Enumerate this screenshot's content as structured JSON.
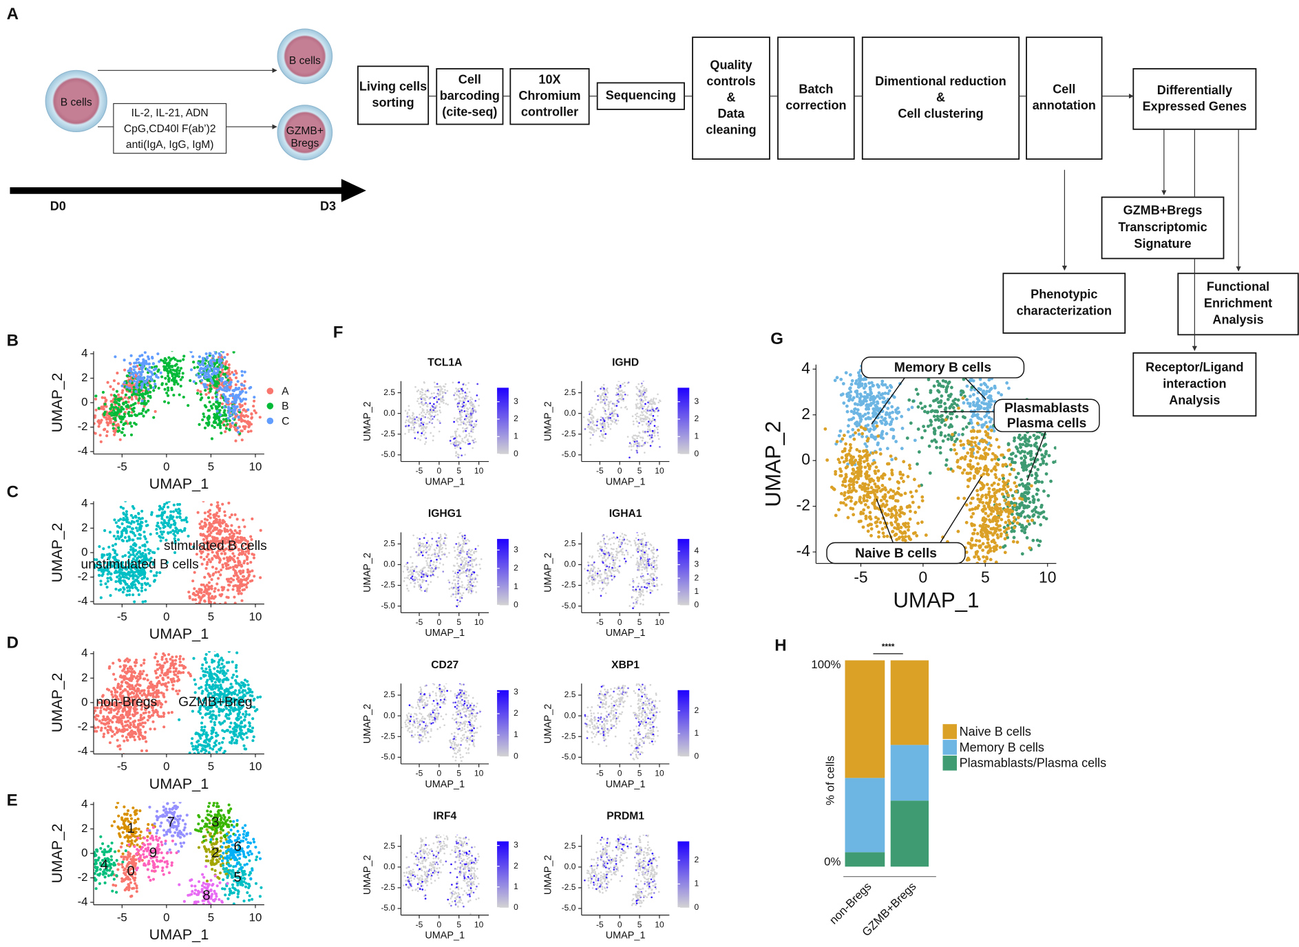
{
  "panel_labels": [
    "A",
    "B",
    "C",
    "D",
    "E",
    "F",
    "G",
    "H"
  ],
  "workflow": {
    "input_cell": "B cells",
    "control_cell": "B cells",
    "treated_cell": [
      "GZMB+",
      "Bregs"
    ],
    "stimulation": [
      "IL-2, IL-21, ADN",
      "CpG,CD40l F(ab’)2",
      "anti(IgA, IgG, IgM)"
    ],
    "timeline": [
      "D0",
      "D3"
    ],
    "steps": [
      [
        "Living cells",
        "sorting"
      ],
      [
        "Cell",
        "barcoding",
        "(cite-seq)"
      ],
      [
        "10X",
        "Chromium",
        "controller"
      ],
      [
        "Sequencing"
      ],
      [
        "Quality",
        "controls",
        "&",
        "Data",
        "cleaning"
      ],
      [
        "Batch",
        "correction"
      ],
      [
        "Dimentional reduction",
        "&",
        "Cell clustering"
      ],
      [
        "Cell",
        "annotation"
      ],
      [
        "Differentially",
        "Expressed Genes"
      ]
    ],
    "outputs": [
      [
        "GZMB+Bregs",
        "Transcriptomic",
        "Signature"
      ],
      [
        "Phenotypic",
        "characterization"
      ],
      [
        "Functional",
        "Enrichment",
        "Analysis"
      ],
      [
        "Receptor/Ligand",
        "interaction",
        "Analysis"
      ]
    ]
  },
  "chart_data": [
    {
      "type": "umap",
      "xlabel": "UMAP_1",
      "ylabel": "UMAP_2",
      "xlim": [
        -8.2,
        11
      ],
      "ylim": [
        -4.2,
        4.2
      ],
      "xticks": [
        -5,
        0,
        5,
        10
      ],
      "yticks": [
        -4,
        -2,
        0,
        2,
        4
      ],
      "legend": true,
      "series": [
        {
          "name": "A",
          "color": "#F8766D",
          "x": [
            -4,
            6,
            8,
            -6.5
          ],
          "y": [
            1,
            2,
            -1,
            -1
          ]
        },
        {
          "name": "B",
          "color": "#00BA38",
          "x": [
            -5,
            -3,
            6,
            0.5,
            5
          ],
          "y": [
            -1,
            1,
            -1,
            2.5,
            2.5
          ]
        },
        {
          "name": "C",
          "color": "#619CFF",
          "x": [
            -3,
            5,
            7.5
          ],
          "y": [
            2.5,
            3,
            0.5
          ]
        }
      ]
    },
    {
      "type": "umap",
      "xlabel": "UMAP_1",
      "ylabel": "UMAP_2",
      "xlim": [
        -8.2,
        11
      ],
      "ylim": [
        -4.2,
        4.2
      ],
      "xticks": [
        -5,
        0,
        5,
        10
      ],
      "yticks": [
        -4,
        -2,
        0,
        2,
        4
      ],
      "legend": false,
      "series": [
        {
          "name": "stimulated B cells",
          "color": "#F8766D",
          "x": [
            5.5,
            5.5,
            8,
            8,
            4.5
          ],
          "y": [
            0.5,
            2.5,
            -2,
            0.5,
            -3.5
          ]
        },
        {
          "name": "unstimulated B cells",
          "color": "#00BFC4",
          "x": [
            -3,
            -4,
            -6.5,
            -4,
            0.5
          ],
          "y": [
            -1,
            2,
            -1,
            -2,
            2.5
          ]
        }
      ]
    },
    {
      "type": "umap",
      "xlabel": "UMAP_1",
      "ylabel": "UMAP_2",
      "xlim": [
        -8.2,
        11
      ],
      "ylim": [
        -4.2,
        4.2
      ],
      "xticks": [
        -5,
        0,
        5,
        10
      ],
      "yticks": [
        -4,
        -2,
        0,
        2,
        4
      ],
      "legend": false,
      "series": [
        {
          "name": "non-Bregs",
          "color": "#F8766D",
          "x": [
            -4.5,
            -4,
            -6.5,
            -1.5,
            0.5,
            -4
          ],
          "y": [
            0,
            2,
            -1,
            0,
            2.5,
            -2
          ]
        },
        {
          "name": "GZMB+Breg",
          "color": "#00BFC4",
          "x": [
            5.5,
            5.5,
            8,
            8,
            4.5
          ],
          "y": [
            0,
            2.5,
            -2,
            0.5,
            -3.5
          ]
        }
      ]
    },
    {
      "type": "umap",
      "xlabel": "UMAP_1",
      "ylabel": "UMAP_2",
      "xlim": [
        -8.2,
        11
      ],
      "ylim": [
        -4.2,
        4.2
      ],
      "xticks": [
        -5,
        0,
        5,
        10
      ],
      "yticks": [
        -4,
        -2,
        0,
        2,
        4
      ],
      "legend": false,
      "series": [
        {
          "name": "0",
          "color": "#F8766D",
          "x": [
            -4
          ],
          "y": [
            -1.5
          ]
        },
        {
          "name": "1",
          "color": "#D89000",
          "x": [
            -4
          ],
          "y": [
            2
          ]
        },
        {
          "name": "2",
          "color": "#A3A500",
          "x": [
            5.5
          ],
          "y": [
            0
          ]
        },
        {
          "name": "3",
          "color": "#39B600",
          "x": [
            5.5
          ],
          "y": [
            2.5
          ]
        },
        {
          "name": "4",
          "color": "#00BF7D",
          "x": [
            -7
          ],
          "y": [
            -1
          ]
        },
        {
          "name": "5",
          "color": "#00BFC4",
          "x": [
            8
          ],
          "y": [
            -2
          ]
        },
        {
          "name": "6",
          "color": "#00B0F6",
          "x": [
            8
          ],
          "y": [
            0.5
          ]
        },
        {
          "name": "7",
          "color": "#9590FF",
          "x": [
            0.5
          ],
          "y": [
            2.5
          ]
        },
        {
          "name": "8",
          "color": "#E76BF3",
          "x": [
            4.5
          ],
          "y": [
            -3.5
          ]
        },
        {
          "name": "9",
          "color": "#FF62BC",
          "x": [
            -1.5
          ],
          "y": [
            0
          ]
        }
      ]
    },
    {
      "type": "feature",
      "title": "TCL1A",
      "xlabel": "UMAP_1",
      "ylabel": "UMAP_2",
      "xlim": [
        -9.6,
        12.5
      ],
      "ylim": [
        -5.8,
        3.9
      ],
      "xticks": [
        -5,
        0,
        5,
        10
      ],
      "yticks": [
        2.5,
        {
          "value": 0,
          "label": "0.0"
        },
        -2.5,
        {
          "value": -5,
          "label": "-5.0"
        }
      ],
      "colorbar": {
        "lim": [
          0,
          3.8
        ],
        "ticks": [
          0,
          1,
          2,
          3
        ],
        "low_color": "#d3d3d3",
        "high_color": "#1f00ff"
      }
    },
    {
      "type": "feature",
      "title": "IGHD",
      "xlabel": "UMAP_1",
      "ylabel": "UMAP_2",
      "xlim": [
        -9.6,
        12.5
      ],
      "ylim": [
        -5.8,
        3.9
      ],
      "xticks": [
        -5,
        0,
        5,
        10
      ],
      "yticks": [
        2.5,
        {
          "value": 0,
          "label": "0.0"
        },
        -2.5,
        {
          "value": -5,
          "label": "-5.0"
        }
      ],
      "colorbar": {
        "lim": [
          0,
          3.8
        ],
        "ticks": [
          0,
          1,
          2,
          3
        ],
        "low_color": "#d3d3d3",
        "high_color": "#1f00ff"
      }
    },
    {
      "type": "feature",
      "title": "IGHG1",
      "xlabel": "UMAP_1",
      "ylabel": "UMAP_2",
      "xlim": [
        -9.6,
        12.5
      ],
      "ylim": [
        -5.8,
        3.9
      ],
      "xticks": [
        -5,
        0,
        5,
        10
      ],
      "yticks": [
        2.5,
        {
          "value": 0,
          "label": "0.0"
        },
        -2.5,
        {
          "value": -5,
          "label": "-5.0"
        }
      ],
      "colorbar": {
        "lim": [
          0,
          3.6
        ],
        "ticks": [
          0,
          1,
          2,
          3
        ],
        "low_color": "#d3d3d3",
        "high_color": "#1f00ff"
      }
    },
    {
      "type": "feature",
      "title": "IGHA1",
      "xlabel": "UMAP_1",
      "ylabel": "UMAP_2",
      "xlim": [
        -9.6,
        12.5
      ],
      "ylim": [
        -5.8,
        3.9
      ],
      "xticks": [
        -5,
        0,
        5,
        10
      ],
      "yticks": [
        2.5,
        {
          "value": 0,
          "label": "0.0"
        },
        -2.5,
        {
          "value": -5,
          "label": "-5.0"
        }
      ],
      "colorbar": {
        "lim": [
          0,
          4.9
        ],
        "ticks": [
          0,
          1,
          2,
          3,
          4
        ],
        "low_color": "#d3d3d3",
        "high_color": "#1f00ff"
      }
    },
    {
      "type": "feature",
      "title": "CD27",
      "xlabel": "UMAP_1",
      "ylabel": "UMAP_2",
      "xlim": [
        -9.6,
        12.5
      ],
      "ylim": [
        -5.8,
        3.9
      ],
      "xticks": [
        -5,
        0,
        5,
        10
      ],
      "yticks": [
        2.5,
        {
          "value": 0,
          "label": "0.0"
        },
        -2.5,
        {
          "value": -5,
          "label": "-5.0"
        }
      ],
      "colorbar": {
        "lim": [
          0,
          3.1
        ],
        "ticks": [
          0,
          1,
          2,
          3
        ],
        "low_color": "#d3d3d3",
        "high_color": "#1f00ff"
      }
    },
    {
      "type": "feature",
      "title": "XBP1",
      "xlabel": "UMAP_1",
      "ylabel": "UMAP_2",
      "xlim": [
        -9.6,
        12.5
      ],
      "ylim": [
        -5.8,
        3.9
      ],
      "xticks": [
        -5,
        0,
        5,
        10
      ],
      "yticks": [
        2.5,
        {
          "value": 0,
          "label": "0.0"
        },
        -2.5,
        {
          "value": -5,
          "label": "-5.0"
        }
      ],
      "colorbar": {
        "lim": [
          0,
          2.9
        ],
        "ticks": [
          0,
          1,
          2
        ],
        "low_color": "#d3d3d3",
        "high_color": "#1f00ff"
      }
    },
    {
      "type": "feature",
      "title": "IRF4",
      "xlabel": "UMAP_1",
      "ylabel": "UMAP_2",
      "xlim": [
        -9.6,
        12.5
      ],
      "ylim": [
        -5.8,
        3.9
      ],
      "xticks": [
        -5,
        0,
        5,
        10
      ],
      "yticks": [
        2.5,
        {
          "value": 0,
          "label": "0.0"
        },
        -2.5,
        {
          "value": -5,
          "label": "-5.0"
        }
      ],
      "colorbar": {
        "lim": [
          0,
          3.2
        ],
        "ticks": [
          0,
          1,
          2,
          3
        ],
        "low_color": "#d3d3d3",
        "high_color": "#1f00ff"
      }
    },
    {
      "type": "feature",
      "title": "PRDM1",
      "xlabel": "UMAP_1",
      "ylabel": "UMAP_2",
      "xlim": [
        -9.6,
        12.5
      ],
      "ylim": [
        -5.8,
        3.9
      ],
      "xticks": [
        -5,
        0,
        5,
        10
      ],
      "yticks": [
        2.5,
        {
          "value": 0,
          "label": "0.0"
        },
        -2.5,
        {
          "value": -5,
          "label": "-5.0"
        }
      ],
      "colorbar": {
        "lim": [
          0,
          2.8
        ],
        "ticks": [
          0,
          1,
          2
        ],
        "low_color": "#d3d3d3",
        "high_color": "#1f00ff"
      }
    },
    {
      "type": "umap_callout",
      "xlabel": "UMAP_1",
      "ylabel": "UMAP_2",
      "xlim": [
        -8.6,
        10.7
      ],
      "ylim": [
        -4.5,
        4.2
      ],
      "xticks": [
        -5,
        0,
        5,
        10
      ],
      "yticks": [
        -4,
        -2,
        0,
        2,
        4
      ],
      "series": [
        {
          "callout": [
            "Memory B cells"
          ],
          "color": "#6DB6E4",
          "x": [
            -3.5,
            -5,
            5
          ],
          "y": [
            2,
            2.5,
            2.5
          ]
        },
        {
          "callout": [
            "Plasmablasts",
            "Plasma cells"
          ],
          "color": "#3E9B72",
          "x": [
            1.5,
            8.5,
            8
          ],
          "y": [
            2,
            0.5,
            -2
          ]
        },
        {
          "callout": [
            "Naive B cells"
          ],
          "color": "#DBA026",
          "x": [
            -4,
            -5.5,
            -2,
            4.5,
            6,
            5
          ],
          "y": [
            -1.5,
            -0.5,
            -2.5,
            0,
            -2,
            -3.5
          ]
        }
      ]
    },
    {
      "type": "stacked_bar",
      "ylabel": "% of cells",
      "categories": [
        "non-Bregs",
        "GZMB+Bregs"
      ],
      "ylim": [
        0,
        100
      ],
      "yticks": [
        {
          "value": 0,
          "label": "0%"
        },
        {
          "value": 100,
          "label": "100%"
        }
      ],
      "significance": "****",
      "series": [
        {
          "name": "Naive B cells",
          "color": "#DBA026",
          "values": [
            57,
            41
          ]
        },
        {
          "name": "Memory B cells",
          "color": "#6DB6E4",
          "values": [
            36,
            27
          ]
        },
        {
          "name": "Plasmablasts/Plasma cells",
          "color": "#3E9B72",
          "values": [
            7,
            32
          ]
        }
      ]
    }
  ]
}
